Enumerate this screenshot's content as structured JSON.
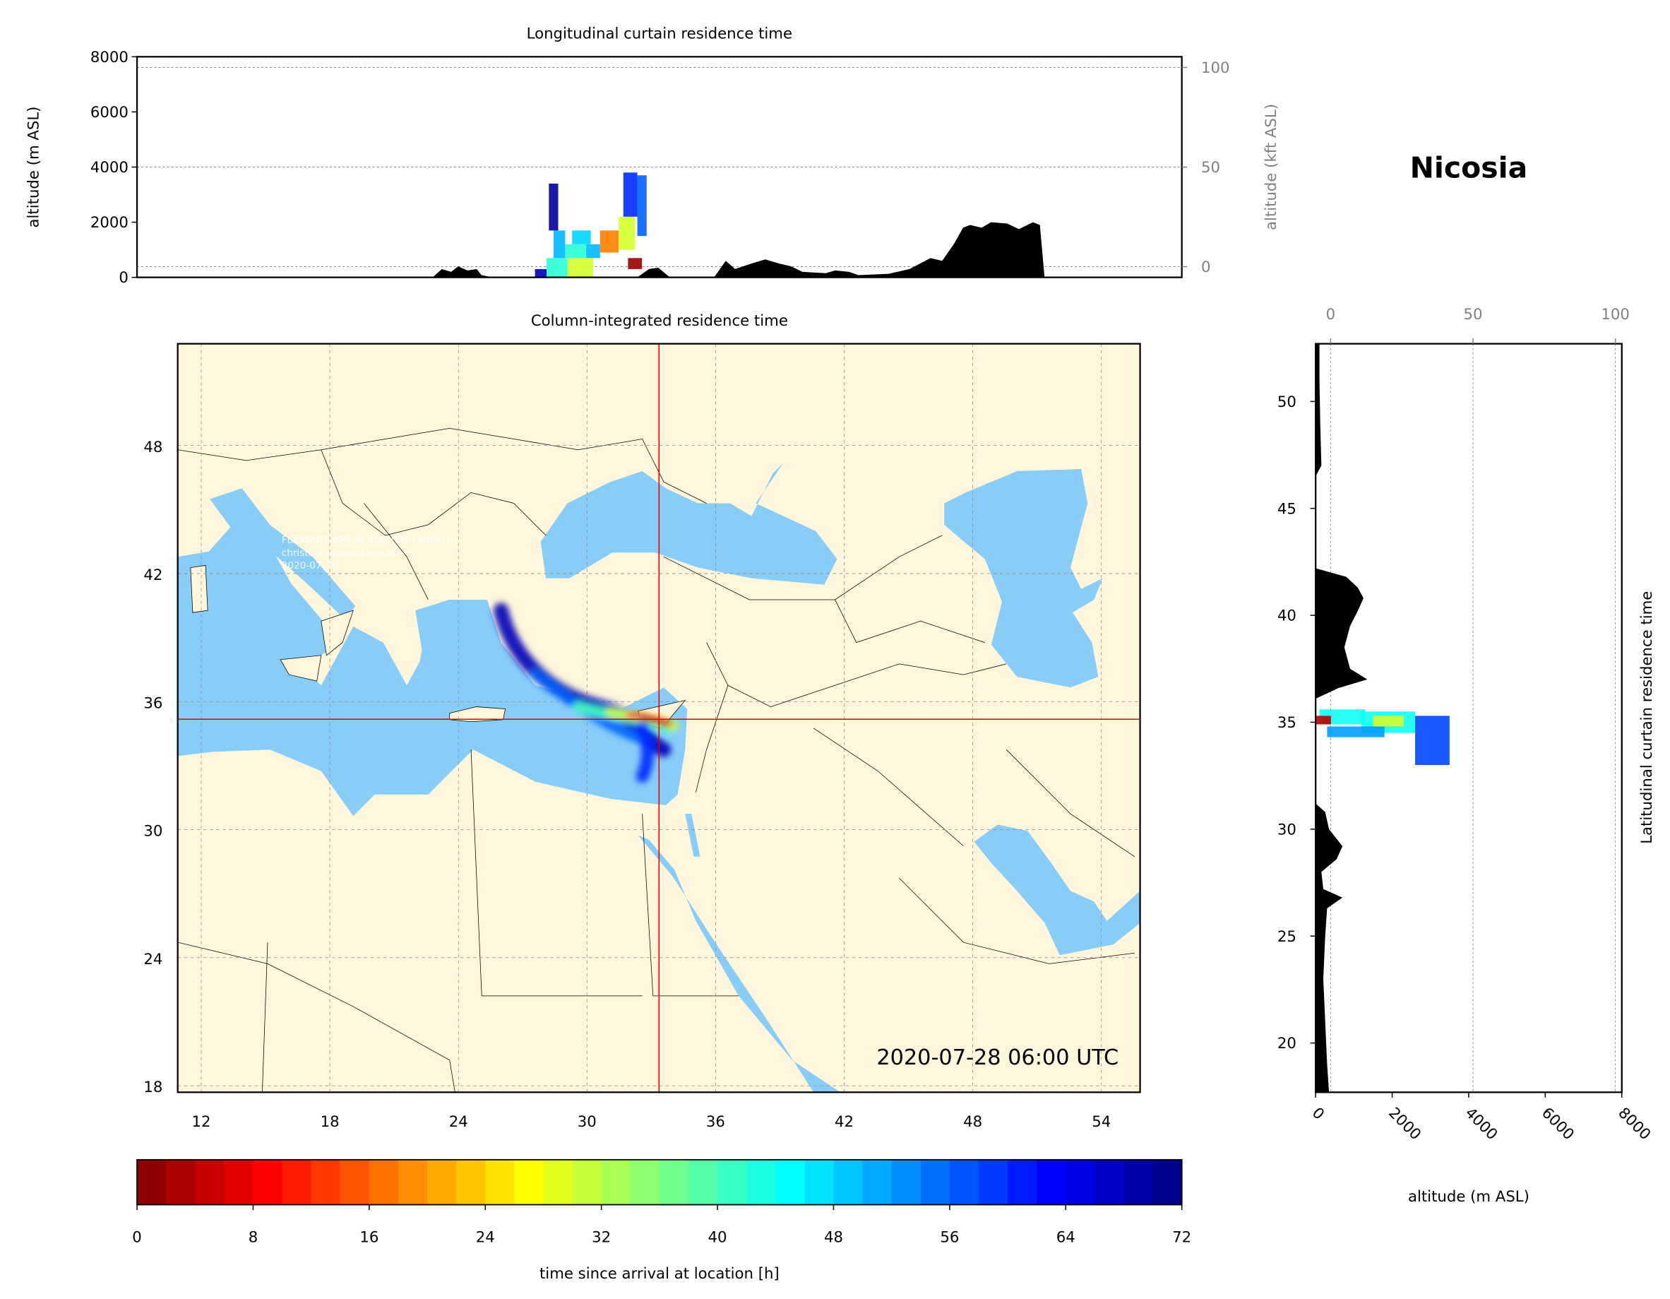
{
  "station": "Nicosia",
  "timestamp": "2020-07-28 06:00 UTC",
  "watermark": [
    "FLEXPART-WRF at MIM (LMU Munich)",
    "christoph.knote@lmu.de",
    "2020-07-30"
  ],
  "colors": {
    "land": "#fff6dc",
    "sea": "#87cdf8",
    "crosshair": "#e00000",
    "terrain": "#000000",
    "grid": "#888888"
  },
  "chart_data": [
    {
      "type": "heatmap",
      "title": "Longitudinal curtain residence time",
      "xlim": [
        10.9,
        55.8
      ],
      "ylim": [
        0,
        8000
      ],
      "ylabel": "altitude (m ASL)",
      "yticks": [
        0,
        2000,
        4000,
        6000,
        8000
      ],
      "y2label": "altitude (kft ASL)",
      "y2ticks": [
        0,
        50,
        100
      ],
      "grid": true,
      "terrain": [
        [
          23.6,
          0
        ],
        [
          24.0,
          300
        ],
        [
          24.4,
          200
        ],
        [
          24.7,
          400
        ],
        [
          25.1,
          250
        ],
        [
          25.5,
          300
        ],
        [
          25.7,
          80
        ],
        [
          26.2,
          0
        ],
        [
          32.4,
          0
        ],
        [
          32.9,
          300
        ],
        [
          33.3,
          350
        ],
        [
          33.8,
          0
        ],
        [
          35.7,
          0
        ],
        [
          36.2,
          600
        ],
        [
          36.6,
          300
        ],
        [
          37.3,
          500
        ],
        [
          37.9,
          650
        ],
        [
          38.5,
          500
        ],
        [
          39.0,
          400
        ],
        [
          39.5,
          200
        ],
        [
          40.5,
          150
        ],
        [
          40.9,
          250
        ],
        [
          41.5,
          200
        ],
        [
          41.9,
          80
        ],
        [
          43.2,
          130
        ],
        [
          44.1,
          300
        ],
        [
          45.0,
          700
        ],
        [
          45.5,
          600
        ],
        [
          46.0,
          1200
        ],
        [
          46.4,
          1800
        ],
        [
          46.7,
          1900
        ],
        [
          47.2,
          1800
        ],
        [
          47.6,
          2000
        ],
        [
          48.3,
          1950
        ],
        [
          48.8,
          1750
        ],
        [
          49.4,
          2000
        ],
        [
          49.7,
          1900
        ],
        [
          49.9,
          0
        ]
      ],
      "cells": [
        {
          "lon": [
            28.0,
            28.5
          ],
          "alt": [
            0,
            300
          ],
          "hours": 68
        },
        {
          "lon": [
            28.5,
            29.4
          ],
          "alt": [
            0,
            700
          ],
          "hours": 42
        },
        {
          "lon": [
            29.4,
            30.5
          ],
          "alt": [
            0,
            700
          ],
          "hours": 30
        },
        {
          "lon": [
            28.8,
            29.3
          ],
          "alt": [
            700,
            1700
          ],
          "hours": 50
        },
        {
          "lon": [
            29.3,
            30.2
          ],
          "alt": [
            700,
            1200
          ],
          "hours": 42
        },
        {
          "lon": [
            30.2,
            30.8
          ],
          "alt": [
            700,
            1200
          ],
          "hours": 50
        },
        {
          "lon": [
            30.8,
            31.6
          ],
          "alt": [
            900,
            1700
          ],
          "hours": 18
        },
        {
          "lon": [
            31.6,
            32.3
          ],
          "alt": [
            1000,
            2200
          ],
          "hours": 30
        },
        {
          "lon": [
            29.6,
            30.4
          ],
          "alt": [
            1200,
            1700
          ],
          "hours": 48
        },
        {
          "lon": [
            31.8,
            32.4
          ],
          "alt": [
            2200,
            3800
          ],
          "hours": 60
        },
        {
          "lon": [
            32.4,
            32.8
          ],
          "alt": [
            1500,
            3700
          ],
          "hours": 56
        },
        {
          "lon": [
            32.0,
            32.6
          ],
          "alt": [
            300,
            700
          ],
          "hours": 2
        },
        {
          "lon": [
            28.6,
            29.0
          ],
          "alt": [
            1700,
            3400
          ],
          "hours": 70
        }
      ]
    },
    {
      "type": "heatmap",
      "title": "Column-integrated residence time",
      "xlim": [
        10.9,
        55.8
      ],
      "ylim": [
        17.7,
        52.8
      ],
      "xticks": [
        12,
        18,
        24,
        30,
        36,
        42,
        48,
        54
      ],
      "yticks": [
        18,
        24,
        30,
        36,
        42,
        48
      ],
      "grid": true,
      "crosshair": {
        "lon": 33.36,
        "lat": 35.17
      }
    },
    {
      "type": "heatmap",
      "title": "Latitudinal curtain residence time",
      "xlabel": "altitude (m ASL)",
      "xticks": [
        0,
        2000,
        4000,
        6000,
        8000
      ],
      "x2ticks": [
        0,
        50,
        100
      ],
      "xlim": [
        0,
        8000
      ],
      "ylim": [
        17.7,
        52.8
      ],
      "yticks": [
        20,
        25,
        30,
        35,
        40,
        45,
        50
      ],
      "grid": true,
      "terrain": [
        [
          17.7,
          350
        ],
        [
          19,
          300
        ],
        [
          21,
          250
        ],
        [
          23,
          200
        ],
        [
          25,
          250
        ],
        [
          26.3,
          300
        ],
        [
          26.8,
          700
        ],
        [
          27.2,
          200
        ],
        [
          28,
          150
        ],
        [
          28.6,
          550
        ],
        [
          29.2,
          700
        ],
        [
          30,
          350
        ],
        [
          30.8,
          250
        ],
        [
          31.2,
          0
        ],
        [
          36.1,
          0
        ],
        [
          36.6,
          600
        ],
        [
          37.0,
          1350
        ],
        [
          37.5,
          900
        ],
        [
          38.5,
          750
        ],
        [
          39.5,
          900
        ],
        [
          40.2,
          1100
        ],
        [
          40.8,
          1250
        ],
        [
          41.3,
          1100
        ],
        [
          41.8,
          800
        ],
        [
          42.2,
          0
        ],
        [
          46.5,
          0
        ],
        [
          47,
          150
        ],
        [
          49,
          120
        ],
        [
          51,
          100
        ],
        [
          52.8,
          100
        ]
      ],
      "cells": [
        {
          "lat": [
            33.0,
            35.3
          ],
          "alt": [
            2600,
            3500
          ],
          "hours": 58
        },
        {
          "lat": [
            34.5,
            35.5
          ],
          "alt": [
            1200,
            2600
          ],
          "hours": 44
        },
        {
          "lat": [
            34.8,
            35.3
          ],
          "alt": [
            1500,
            2300
          ],
          "hours": 30
        },
        {
          "lat": [
            34.9,
            35.6
          ],
          "alt": [
            100,
            1300
          ],
          "hours": 44
        },
        {
          "lat": [
            34.9,
            35.3
          ],
          "alt": [
            0,
            400
          ],
          "hours": 4
        },
        {
          "lat": [
            34.3,
            34.8
          ],
          "alt": [
            300,
            1800
          ],
          "hours": 52
        }
      ]
    },
    {
      "type": "colorbar",
      "xlabel": "time since arrival at location [h]",
      "range": [
        0,
        72
      ],
      "step": 2,
      "ticks": [
        0,
        8,
        16,
        24,
        32,
        40,
        48,
        56,
        64,
        72
      ],
      "colormap": "jet (reversed)"
    }
  ]
}
